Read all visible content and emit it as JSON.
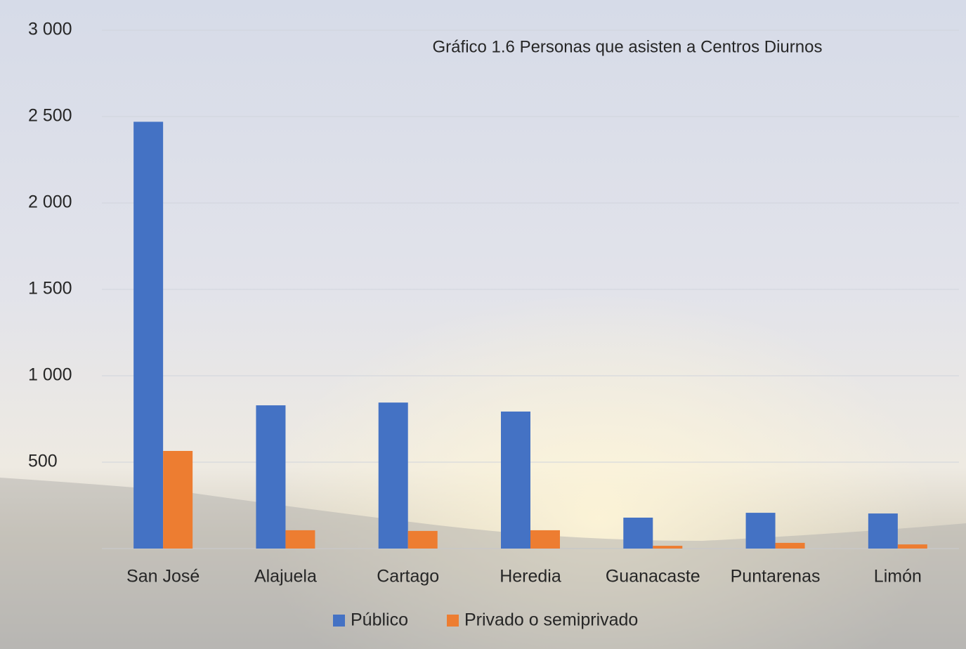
{
  "chart_data": {
    "type": "bar",
    "title": "Gráfico 1.6 Personas que asisten a Centros Diurnos",
    "categories": [
      "San José",
      "Alajuela",
      "Cartago",
      "Heredia",
      "Guanacaste",
      "Puntarenas",
      "Limón"
    ],
    "series": [
      {
        "name": "Público",
        "color": "#4472c4",
        "values": [
          2470,
          829,
          845,
          793,
          179,
          207,
          203
        ]
      },
      {
        "name": "Privado o semiprivado",
        "color": "#ed7d31",
        "values": [
          565,
          106,
          102,
          106,
          16,
          33,
          24
        ]
      }
    ],
    "ylim": [
      0,
      3000
    ],
    "yticks": [
      500,
      {
        "value": 1000,
        "label": "1 000"
      },
      {
        "value": 1500,
        "label": "1 500"
      },
      {
        "value": 2000,
        "label": "2 000"
      },
      {
        "value": 2500,
        "label": "2 500"
      },
      {
        "value": 3000,
        "label": "3 000"
      }
    ],
    "grid": true,
    "legend": "bottom"
  }
}
